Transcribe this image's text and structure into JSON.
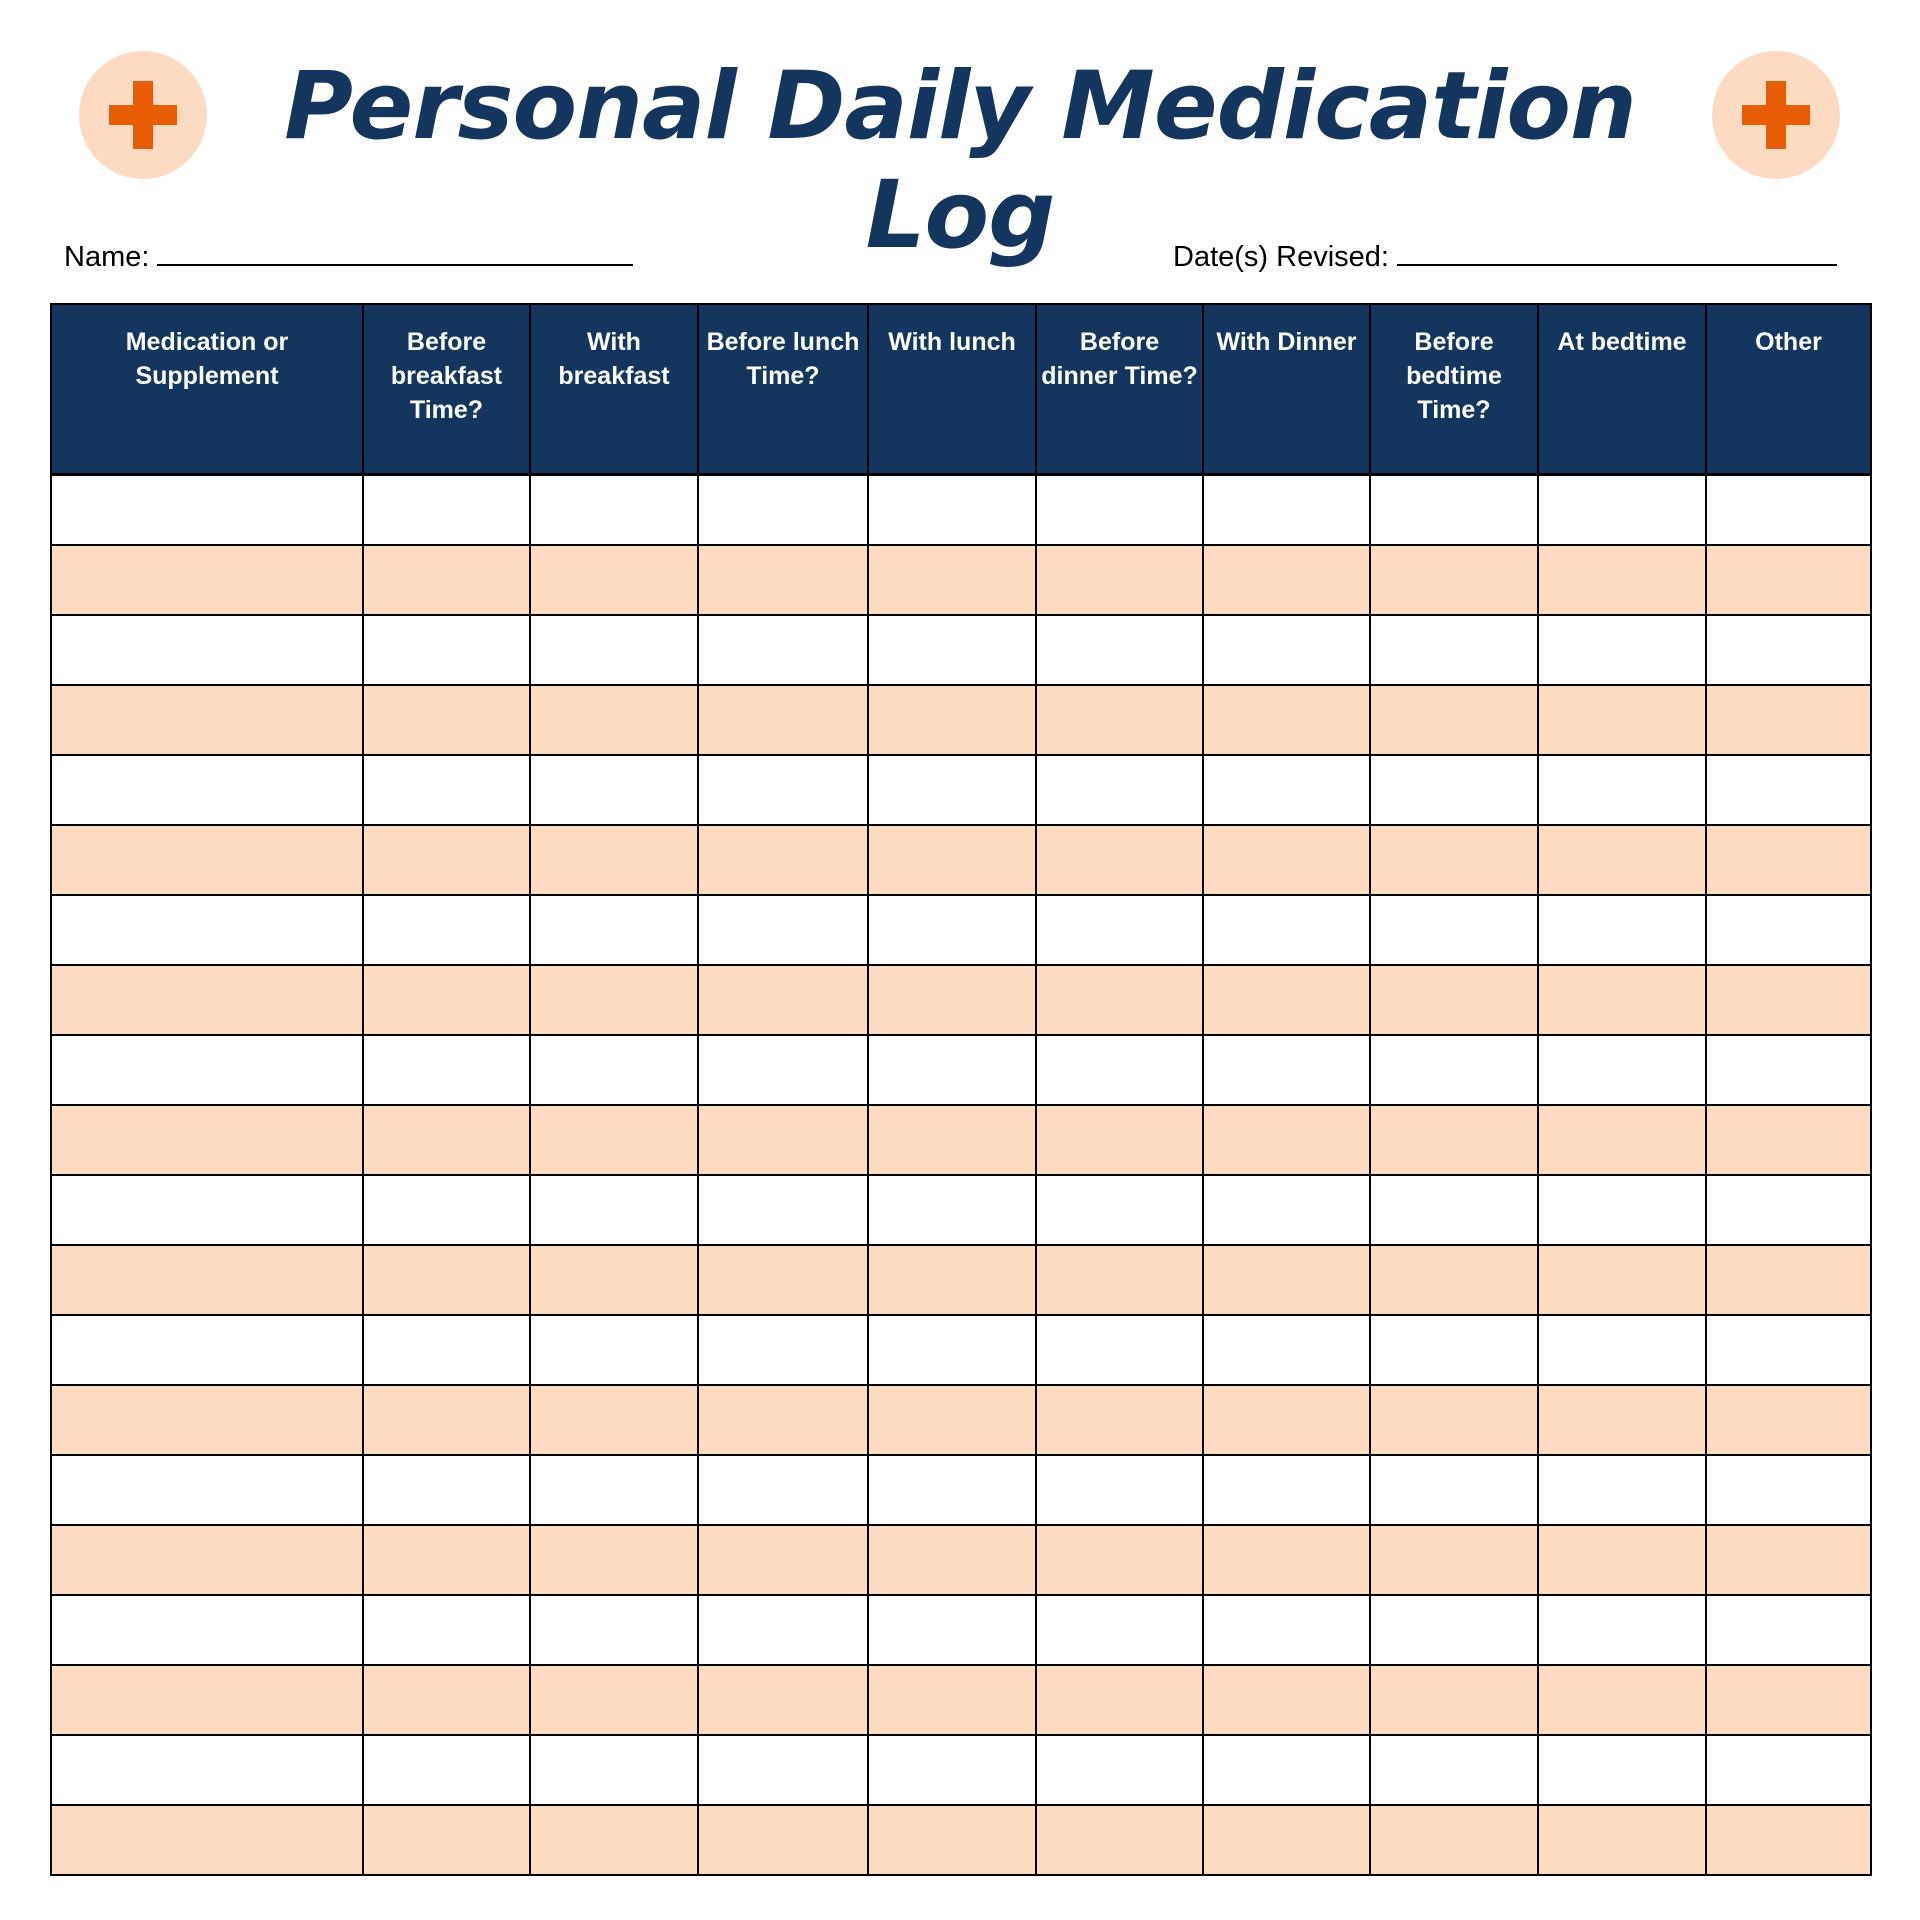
{
  "title": "Personal Daily Medication Log",
  "icons": {
    "left": "medical-cross-icon",
    "right": "medical-cross-icon"
  },
  "colors": {
    "header_bg": "#14365e",
    "row_alt": "#fddac2",
    "cross": "#e85d04",
    "circle": "#fddac2"
  },
  "fields": {
    "name_label": "Name:",
    "date_label": "Date(s) Revised:"
  },
  "table": {
    "columns": [
      "Medication or Supplement",
      "Before breakfast Time?",
      "With breakfast",
      "Before lunch Time?",
      "With lunch",
      "Before dinner Time?",
      "With Dinner",
      "Before bedtime Time?",
      "At bedtime",
      "Other"
    ],
    "row_count": 20
  }
}
